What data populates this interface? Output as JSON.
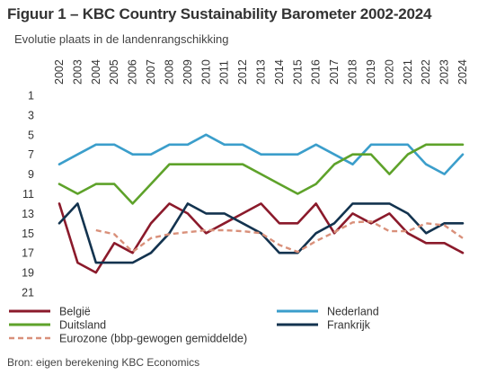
{
  "header": {
    "title": "Figuur 1 – KBC Country Sustainability Barometer 2002-2024",
    "subtitle": "Evolutie plaats in de landenrangschikking"
  },
  "footer": {
    "source": "Bron:  eigen berekening KBC Economics"
  },
  "chart_data": {
    "type": "line",
    "x": [
      "2002",
      "2003",
      "2004",
      "2005",
      "2006",
      "2007",
      "2008",
      "2009",
      "2010",
      "2011",
      "2012",
      "2013",
      "2014",
      "2015",
      "2016",
      "2017",
      "2018",
      "2019",
      "2020",
      "2021",
      "2022",
      "2023",
      "2024"
    ],
    "ylim": [
      21,
      1
    ],
    "yticks": [
      1,
      3,
      5,
      7,
      9,
      11,
      13,
      15,
      17,
      19,
      21
    ],
    "inverted_y": true,
    "grid": false,
    "legend_position": "bottom",
    "series": [
      {
        "name": "België",
        "color": "#8b1a2b",
        "dashed": false,
        "values": [
          12,
          18,
          19,
          16,
          17,
          14,
          12,
          13,
          15,
          14,
          13,
          12,
          14,
          14,
          12,
          15,
          13,
          14,
          13,
          15,
          16,
          16,
          17
        ]
      },
      {
        "name": "Nederland",
        "color": "#3b9ecb",
        "dashed": false,
        "values": [
          8,
          7,
          6,
          6,
          7,
          7,
          6,
          6,
          5,
          6,
          6,
          7,
          7,
          7,
          6,
          7,
          8,
          6,
          6,
          6,
          8,
          9,
          7
        ]
      },
      {
        "name": "Duitsland",
        "color": "#5ea22a",
        "dashed": false,
        "values": [
          10,
          11,
          10,
          10,
          12,
          10,
          8,
          8,
          8,
          8,
          8,
          9,
          10,
          11,
          10,
          8,
          7,
          7,
          9,
          7,
          6,
          6,
          6
        ]
      },
      {
        "name": "Frankrijk",
        "color": "#13334f",
        "dashed": false,
        "values": [
          14,
          12,
          18,
          18,
          18,
          17,
          15,
          12,
          13,
          13,
          14,
          15,
          17,
          17,
          15,
          14,
          12,
          12,
          12,
          13,
          15,
          14,
          14
        ]
      },
      {
        "name": "Eurozone (bbp-gewogen gemiddelde)",
        "color": "#d9907a",
        "dashed": true,
        "values": [
          null,
          null,
          14.7,
          15.1,
          16.9,
          15.5,
          15.1,
          14.9,
          14.7,
          14.7,
          14.8,
          15.0,
          16.2,
          16.9,
          15.8,
          14.9,
          13.9,
          13.8,
          14.8,
          14.8,
          14.0,
          14.2,
          15.5
        ]
      }
    ]
  }
}
